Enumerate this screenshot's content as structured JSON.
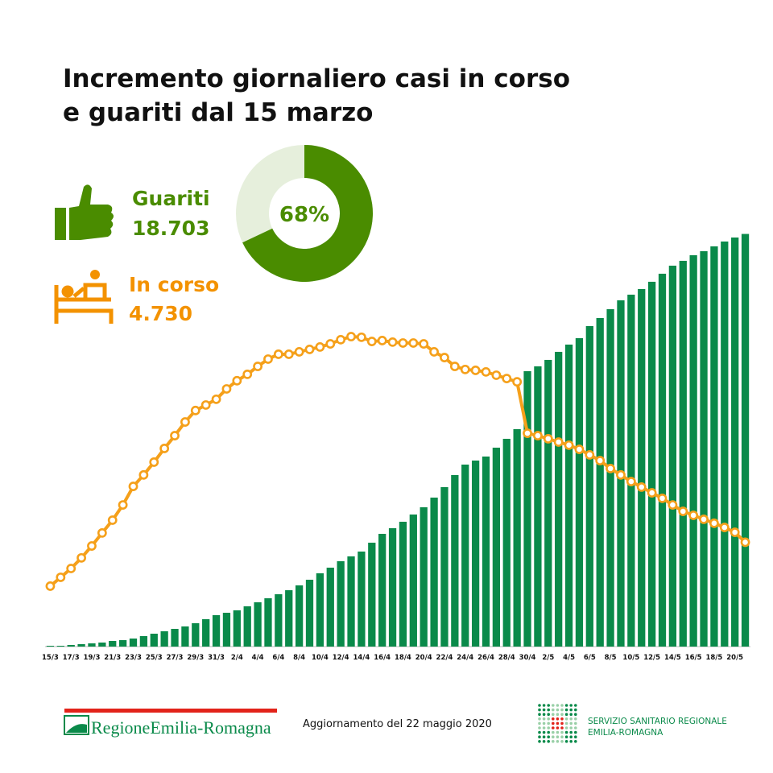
{
  "chart_data": [
    {
      "type": "bar",
      "title": [
        "Incremento giornaliero casi in corso",
        "e guariti dal 15 marzo"
      ],
      "categories": [
        "15/3",
        null,
        "17/3",
        null,
        "19/3",
        null,
        "21/3",
        null,
        "23/3",
        null,
        "25/3",
        null,
        "27/3",
        null,
        "29/3",
        null,
        "31/3",
        null,
        "2/4",
        null,
        "4/4",
        null,
        "6/4",
        null,
        "8/4",
        null,
        "10/4",
        null,
        "12/4",
        null,
        "14/4",
        null,
        "16/4",
        null,
        "18/4",
        null,
        "20/4",
        null,
        "22/4",
        null,
        "24/4",
        null,
        "26/4",
        null,
        "28/4",
        null,
        "30/4",
        null,
        "2/5",
        null,
        "4/5",
        null,
        "6/5",
        null,
        "8/5",
        null,
        "10/5",
        null,
        "12/5",
        null,
        "14/5",
        null,
        "16/5",
        null,
        "18/5",
        null,
        "20/5",
        null
      ],
      "ylim": [
        0,
        20000
      ],
      "series": [
        {
          "name": "Guariti",
          "type": "bar",
          "color": "#0a8a4a",
          "legend_color": "#4a8c00",
          "values": [
            37,
            37,
            73,
            110,
            146,
            183,
            256,
            292,
            365,
            475,
            584,
            694,
            803,
            913,
            1059,
            1241,
            1424,
            1533,
            1643,
            1825,
            2008,
            2190,
            2373,
            2555,
            2774,
            3030,
            3322,
            3577,
            3869,
            4088,
            4307,
            4709,
            5110,
            5366,
            5658,
            5986,
            6315,
            6753,
            7227,
            7775,
            8249,
            8432,
            8614,
            9016,
            9417,
            9855,
            12483,
            12702,
            12994,
            13359,
            13688,
            13980,
            14527,
            14892,
            15294,
            15695,
            15951,
            16206,
            16535,
            16900,
            17265,
            17484,
            17739,
            17922,
            18141,
            18360,
            18542,
            18703
          ],
          "value_labels": [
            null,
            null,
            null,
            null,
            null,
            null,
            null,
            null,
            null,
            null,
            null,
            null,
            null,
            null,
            null,
            null,
            null,
            null,
            null,
            null,
            null,
            null,
            null,
            null,
            null,
            null,
            null,
            null,
            null,
            null,
            null,
            null,
            null,
            null,
            null,
            null,
            null,
            null,
            null,
            null,
            null,
            null,
            null,
            null,
            null,
            null,
            null,
            null,
            null,
            null,
            null,
            null,
            null,
            null,
            null,
            null,
            null,
            null,
            null,
            null,
            null,
            null,
            null,
            null,
            null,
            null,
            null,
            "18.703"
          ]
        },
        {
          "name": "In corso",
          "type": "line",
          "color": "#f5a01a",
          "legend_color": "#f39200",
          "values": [
            2740,
            3140,
            3540,
            4020,
            4560,
            5150,
            5730,
            6420,
            7260,
            7780,
            8360,
            8980,
            9560,
            10180,
            10700,
            10950,
            11210,
            11680,
            12050,
            12340,
            12700,
            13030,
            13250,
            13250,
            13360,
            13470,
            13580,
            13720,
            13910,
            14050,
            14020,
            13830,
            13870,
            13800,
            13760,
            13760,
            13720,
            13360,
            13100,
            12700,
            12560,
            12520,
            12450,
            12300,
            12150,
            12000,
            9670,
            9560,
            9420,
            9270,
            9130,
            8940,
            8690,
            8430,
            8070,
            7780,
            7480,
            7230,
            6970,
            6720,
            6420,
            6130,
            5950,
            5770,
            5590,
            5400,
            5180,
            4730
          ],
          "value_labels": [
            null,
            null,
            null,
            null,
            null,
            null,
            null,
            null,
            null,
            null,
            null,
            null,
            null,
            null,
            null,
            null,
            null,
            null,
            null,
            null,
            null,
            null,
            null,
            null,
            null,
            null,
            null,
            null,
            null,
            null,
            null,
            null,
            null,
            null,
            null,
            null,
            null,
            null,
            null,
            null,
            null,
            null,
            null,
            null,
            null,
            null,
            null,
            null,
            null,
            null,
            null,
            null,
            null,
            null,
            null,
            null,
            null,
            null,
            null,
            null,
            null,
            null,
            null,
            null,
            null,
            null,
            null,
            "4.730"
          ]
        }
      ]
    },
    {
      "type": "donut",
      "values": [
        68
      ],
      "value_labels": [
        "68%"
      ],
      "color": "#4a8c00",
      "track_color": "#e6efdc",
      "label_color": "#4a8c00"
    }
  ],
  "footer": {
    "logo_text": "RegioneEmilia-Romagna",
    "update": "Aggiornamento del 22 maggio 2020",
    "service_line1": "SERVIZIO SANITARIO REGIONALE",
    "service_line2": "EMILIA-ROMAGNA"
  }
}
